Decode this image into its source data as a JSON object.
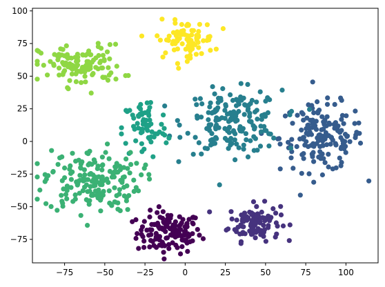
{
  "chart_data": {
    "type": "scatter",
    "title": "",
    "xlabel": "",
    "ylabel": "",
    "xlim": [
      -95,
      120
    ],
    "ylim": [
      -93,
      102
    ],
    "grid": false,
    "legend": "none",
    "x_ticks": [
      -75,
      -50,
      -25,
      0,
      25,
      50,
      75,
      100
    ],
    "y_ticks": [
      -75,
      -50,
      -25,
      0,
      25,
      50,
      75,
      100
    ],
    "x_tick_labels": [
      "−75",
      "−50",
      "−25",
      "0",
      "25",
      "50",
      "75",
      "100"
    ],
    "y_tick_labels": [
      "−75",
      "−50",
      "−25",
      "0",
      "25",
      "50",
      "75",
      "100"
    ],
    "colormap": "viridis",
    "clusters": [
      {
        "color": "#440154",
        "center": [
          -10,
          -70
        ],
        "spread": [
          10,
          8
        ],
        "count": 130
      },
      {
        "color": "#46337e",
        "center": [
          43,
          -62
        ],
        "spread": [
          8,
          7
        ],
        "count": 110
      },
      {
        "color": "#365c8d",
        "center": [
          85,
          3
        ],
        "spread": [
          13,
          13
        ],
        "count": 160
      },
      {
        "color": "#277f8e",
        "center": [
          30,
          15
        ],
        "spread": [
          15,
          12
        ],
        "count": 180
      },
      {
        "color": "#1fa187",
        "center": [
          -25,
          10
        ],
        "spread": [
          7,
          12
        ],
        "count": 70
      },
      {
        "color": "#3bb174",
        "center": [
          -58,
          -30
        ],
        "spread": [
          15,
          12
        ],
        "count": 180
      },
      {
        "color": "#8fd744",
        "center": [
          -65,
          58
        ],
        "spread": [
          13,
          8
        ],
        "count": 120
      },
      {
        "color": "#fde725",
        "center": [
          0,
          78
        ],
        "spread": [
          9,
          7
        ],
        "count": 80
      }
    ]
  }
}
